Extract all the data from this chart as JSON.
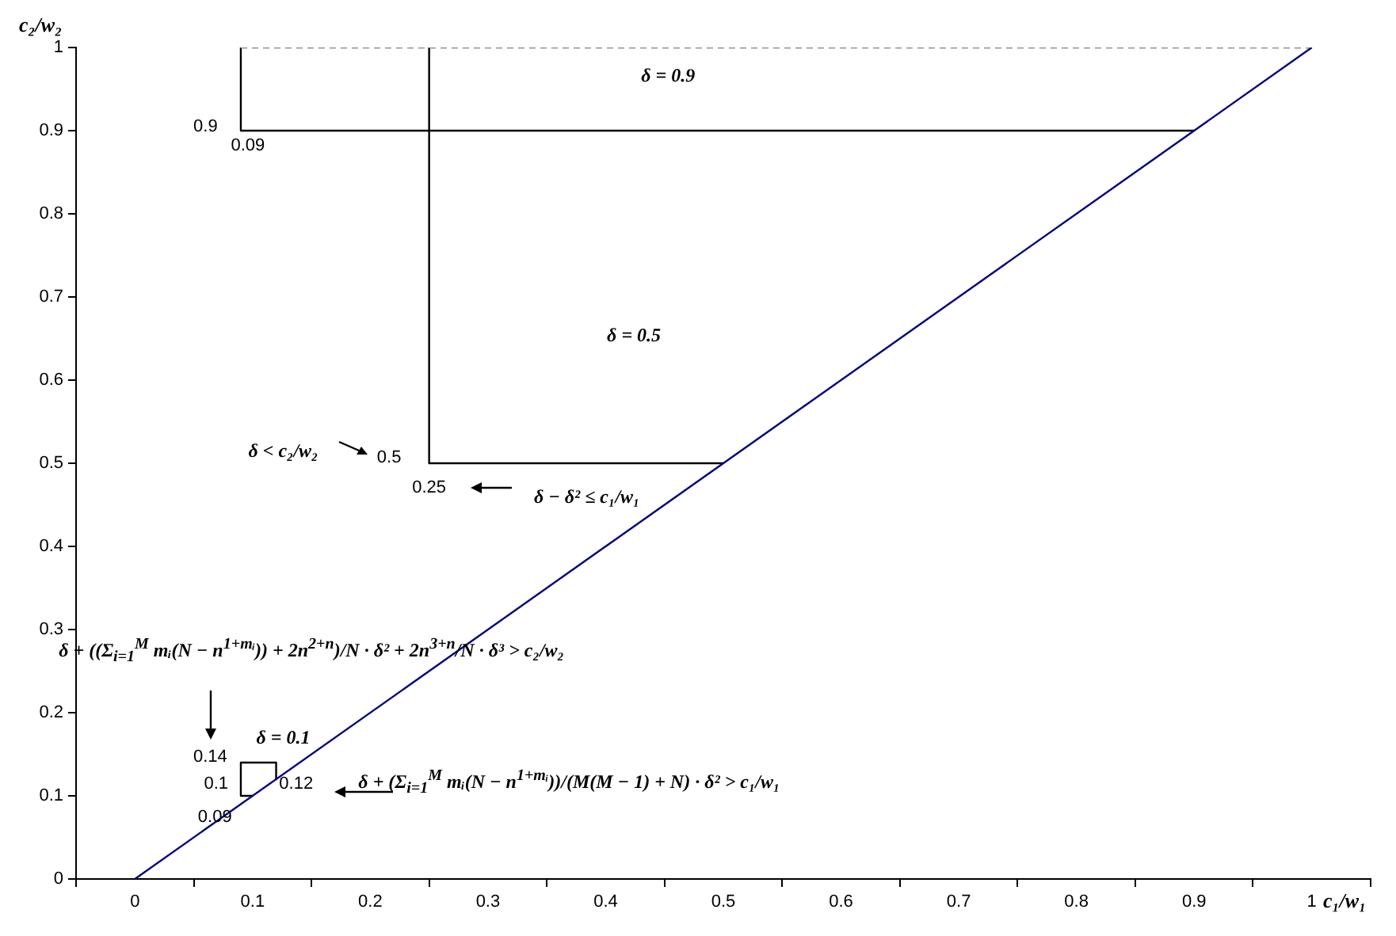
{
  "chart_data": {
    "type": "line",
    "xlabel": "c₁/w₁",
    "ylabel": "c₂/w₂",
    "xlim": [
      -0.05,
      1.05
    ],
    "ylim": [
      0,
      1
    ],
    "grid": false,
    "marker": "none",
    "xticks": [
      {
        "value": -0.05,
        "label": null
      },
      0,
      {
        "value": 0.05,
        "label": null
      },
      0.1,
      {
        "value": 0.15,
        "label": null
      },
      0.2,
      {
        "value": 0.25,
        "label": null
      },
      0.3,
      {
        "value": 0.35,
        "label": null
      },
      0.4,
      {
        "value": 0.45,
        "label": null
      },
      0.5,
      {
        "value": 0.55,
        "label": null
      },
      0.6,
      {
        "value": 0.65,
        "label": null
      },
      0.7,
      {
        "value": 0.75,
        "label": null
      },
      0.8,
      {
        "value": 0.85,
        "label": null
      },
      0.9,
      {
        "value": 0.95,
        "label": null
      },
      1,
      {
        "value": 1.05,
        "label": null
      }
    ],
    "yticks": [
      0,
      0.1,
      0.2,
      0.3,
      0.4,
      0.5,
      0.6,
      0.7,
      0.8,
      0.9,
      1
    ],
    "series": [
      {
        "color": "#000080",
        "x": [
          0,
          1
        ],
        "values": [
          0,
          1
        ]
      },
      {
        "color": "#808080",
        "line_style": "dashed",
        "x": [
          0.09,
          1
        ],
        "values": [
          1,
          1
        ]
      },
      {
        "color": "#000000",
        "x": [
          0.09,
          0.09,
          0.9
        ],
        "values": [
          1,
          0.9,
          0.9
        ]
      },
      {
        "color": "#000000",
        "x": [
          0.25,
          0.25,
          0.5
        ],
        "values": [
          1,
          0.5,
          0.5
        ]
      },
      {
        "color": "#000000",
        "x": [
          0.1,
          0.09,
          0.09,
          0.12,
          0.12
        ],
        "values": [
          0.1,
          0.1,
          0.14,
          0.14,
          0.12
        ]
      }
    ],
    "annotations": [
      "δ = 0.9",
      "δ = 0.5",
      "δ = 0.1",
      "0.9",
      "0.09",
      "δ < c₂/w₂",
      "0.5",
      "0.25",
      "δ − δ² ≤ c₁/w₁",
      "δ + ((Σ$_{i=1}$$^{M}$ mᵢ(N − n$^{1+mᵢ}$)) + 2n$^{2+n}$)/N · δ² + 2n$^{3+n}$/N · δ³ > c₂/w₂",
      "0.14",
      "0.1",
      "0.09",
      "0.12",
      "δ + (Σ$_{i=1}$$^{M}$ mᵢ(N − n$^{1+mᵢ}$))/(M(M − 1) + N) · δ² > c₁/w₁"
    ]
  }
}
